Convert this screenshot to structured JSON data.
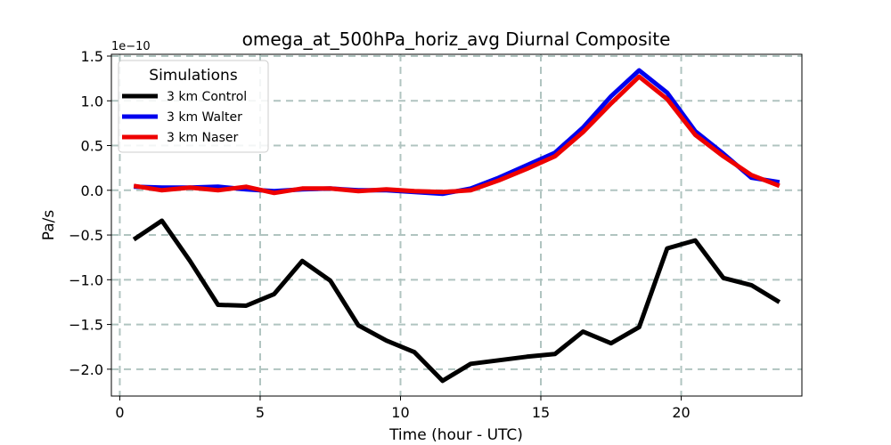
{
  "chart_data": {
    "type": "line",
    "title": "omega_at_500hPa_horiz_avg Diurnal Composite",
    "xlabel": "Time (hour - UTC)",
    "ylabel": "Pa/s",
    "y_offset_label": "1e−10",
    "xlim": [
      -0.3,
      24.3
    ],
    "ylim": [
      -2.3,
      1.52
    ],
    "x_ticks": [
      0,
      5,
      10,
      15,
      20
    ],
    "x_tick_labels": [
      "0",
      "5",
      "10",
      "15",
      "20"
    ],
    "y_ticks": [
      1.5,
      1.0,
      0.5,
      0.0,
      -0.5,
      -1.0,
      -1.5,
      -2.0
    ],
    "y_tick_labels": [
      "1.5",
      "1.0",
      "0.5",
      "0.0",
      "−0.5",
      "−1.0",
      "−1.5",
      "−2.0"
    ],
    "grid": true,
    "legend": {
      "title": "Simulations",
      "placement": "top-left"
    },
    "x": [
      0.5,
      1.5,
      2.5,
      3.5,
      4.5,
      5.5,
      6.5,
      7.5,
      8.5,
      9.5,
      10.5,
      11.5,
      12.5,
      13.5,
      14.5,
      15.5,
      16.5,
      17.5,
      18.5,
      19.5,
      20.5,
      21.5,
      22.5,
      23.5
    ],
    "series": [
      {
        "name": "3 km Control",
        "color": "#000000",
        "values": [
          -0.55,
          -0.34,
          -0.79,
          -1.28,
          -1.29,
          -1.16,
          -0.79,
          -1.01,
          -1.51,
          -1.68,
          -1.81,
          -2.13,
          -1.94,
          -1.9,
          -1.86,
          -1.83,
          -1.58,
          -1.71,
          -1.53,
          -0.65,
          -0.56,
          -0.98,
          -1.06,
          -1.25
        ]
      },
      {
        "name": "3 km Walter",
        "color": "#0000ee",
        "values": [
          0.04,
          0.03,
          0.03,
          0.04,
          0.01,
          -0.01,
          0.01,
          0.02,
          0.0,
          0.0,
          -0.02,
          -0.04,
          0.02,
          0.14,
          0.28,
          0.42,
          0.7,
          1.05,
          1.34,
          1.09,
          0.66,
          0.41,
          0.14,
          0.09
        ]
      },
      {
        "name": "3 km Naser",
        "color": "#ee0000",
        "values": [
          0.05,
          0.0,
          0.03,
          0.0,
          0.04,
          -0.03,
          0.02,
          0.02,
          -0.01,
          0.01,
          -0.01,
          -0.02,
          0.0,
          0.11,
          0.24,
          0.38,
          0.65,
          0.97,
          1.27,
          1.02,
          0.62,
          0.38,
          0.17,
          0.05
        ]
      }
    ]
  }
}
